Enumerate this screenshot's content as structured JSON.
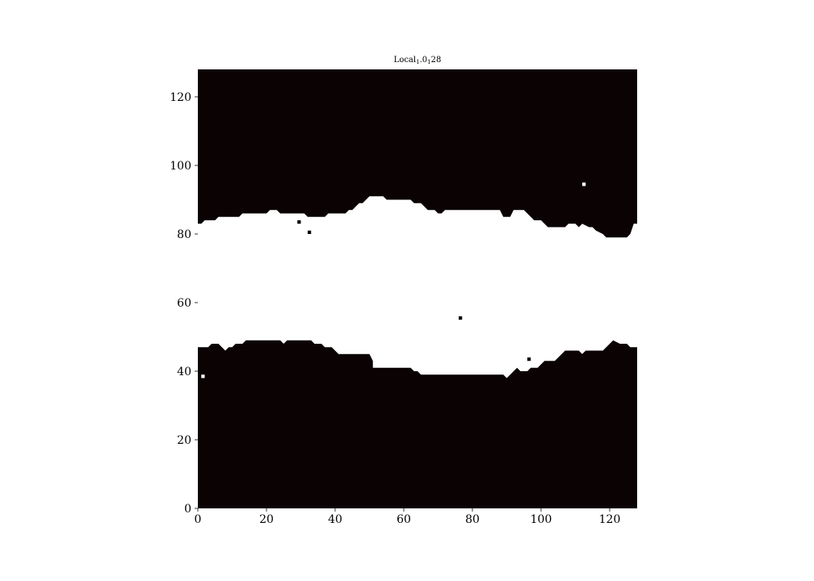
{
  "chart_data": {
    "type": "heatmap",
    "title_main": "Local",
    "title_sub1": "1",
    "title_mid": ".0",
    "title_sub2": "1",
    "title_end": "28",
    "grid": false,
    "xlim": [
      0,
      128
    ],
    "ylim": [
      0,
      128
    ],
    "xticks": [
      0,
      20,
      40,
      60,
      80,
      100,
      120
    ],
    "yticks": [
      0,
      20,
      40,
      60,
      80,
      100,
      120
    ],
    "colors": {
      "background": "#0a0203",
      "foreground": "#ffffff"
    },
    "upper_boundary_points": [
      [
        0,
        83
      ],
      [
        1,
        83
      ],
      [
        2,
        84
      ],
      [
        3,
        84
      ],
      [
        4,
        84
      ],
      [
        5,
        84
      ],
      [
        6,
        85
      ],
      [
        12,
        85
      ],
      [
        13,
        86
      ],
      [
        20,
        86
      ],
      [
        21,
        87
      ],
      [
        23,
        87
      ],
      [
        24,
        86
      ],
      [
        31,
        86
      ],
      [
        32,
        85
      ],
      [
        37,
        85
      ],
      [
        38,
        86
      ],
      [
        43,
        86
      ],
      [
        44,
        87
      ],
      [
        45,
        87
      ],
      [
        46,
        88
      ],
      [
        47,
        89
      ],
      [
        48,
        89
      ],
      [
        49,
        90
      ],
      [
        50,
        91
      ],
      [
        54,
        91
      ],
      [
        55,
        90
      ],
      [
        62,
        90
      ],
      [
        63,
        89
      ],
      [
        65,
        89
      ],
      [
        66,
        88
      ],
      [
        67,
        87
      ],
      [
        69,
        87
      ],
      [
        70,
        86
      ],
      [
        71,
        86
      ],
      [
        72,
        87
      ],
      [
        88,
        87
      ],
      [
        89,
        85
      ],
      [
        91,
        85
      ],
      [
        92,
        87
      ],
      [
        95,
        87
      ],
      [
        96,
        86
      ],
      [
        97,
        85
      ],
      [
        98,
        84
      ],
      [
        100,
        84
      ],
      [
        101,
        83
      ],
      [
        102,
        82
      ],
      [
        107,
        82
      ],
      [
        108,
        83
      ],
      [
        110,
        83
      ],
      [
        111,
        82
      ],
      [
        112,
        83
      ],
      [
        114,
        82
      ],
      [
        115,
        82
      ],
      [
        116,
        81
      ],
      [
        118,
        80
      ],
      [
        119,
        79
      ],
      [
        125,
        79
      ],
      [
        126,
        80
      ],
      [
        127,
        83
      ],
      [
        128,
        83
      ]
    ],
    "lower_boundary_points": [
      [
        0,
        47
      ],
      [
        3,
        47
      ],
      [
        4,
        48
      ],
      [
        6,
        48
      ],
      [
        7,
        47
      ],
      [
        8,
        46
      ],
      [
        9,
        47
      ],
      [
        10,
        47
      ],
      [
        11,
        48
      ],
      [
        13,
        48
      ],
      [
        14,
        49
      ],
      [
        24,
        49
      ],
      [
        25,
        48
      ],
      [
        26,
        49
      ],
      [
        33,
        49
      ],
      [
        34,
        48
      ],
      [
        36,
        48
      ],
      [
        37,
        47
      ],
      [
        39,
        47
      ],
      [
        40,
        46
      ],
      [
        41,
        45
      ],
      [
        50,
        45
      ],
      [
        51,
        43
      ],
      [
        51,
        41
      ],
      [
        62,
        41
      ],
      [
        63,
        40
      ],
      [
        64,
        40
      ],
      [
        65,
        39
      ],
      [
        89,
        39
      ],
      [
        90,
        38
      ],
      [
        91,
        39
      ],
      [
        92,
        40
      ],
      [
        93,
        41
      ],
      [
        94,
        40
      ],
      [
        96,
        40
      ],
      [
        97,
        41
      ],
      [
        99,
        41
      ],
      [
        100,
        42
      ],
      [
        101,
        43
      ],
      [
        104,
        43
      ],
      [
        105,
        44
      ],
      [
        106,
        45
      ],
      [
        107,
        46
      ],
      [
        111,
        46
      ],
      [
        112,
        45
      ],
      [
        113,
        46
      ],
      [
        118,
        46
      ],
      [
        119,
        47
      ],
      [
        120,
        48
      ],
      [
        121,
        49
      ],
      [
        123,
        48
      ],
      [
        125,
        48
      ],
      [
        126,
        47
      ],
      [
        128,
        47
      ]
    ],
    "isolated_pixels": [
      {
        "x": 112,
        "y": 94,
        "value": 1
      },
      {
        "x": 1,
        "y": 38,
        "value": 1
      },
      {
        "x": 29,
        "y": 83,
        "value": 0
      },
      {
        "x": 32,
        "y": 80,
        "value": 0
      },
      {
        "x": 76,
        "y": 55,
        "value": 0
      },
      {
        "x": 96,
        "y": 43,
        "value": 0
      }
    ]
  }
}
